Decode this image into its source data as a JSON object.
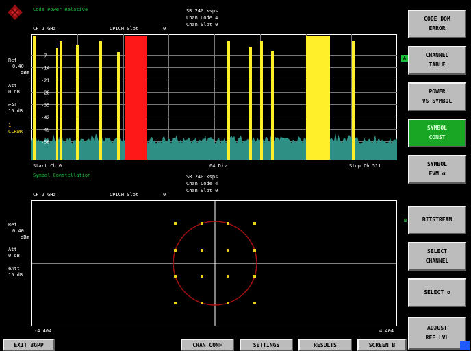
{
  "top": {
    "title": "Code Power Relative",
    "cf": "CF 2 GHz",
    "slot_label": "CPICH Slot",
    "slot_value": "0",
    "sr": "SR 240 ksps",
    "chan_code": "Chan Code 4",
    "chan_slot": "Chan Slot 0",
    "left_info": [
      "Ref",
      "0.40",
      "dBm",
      "Att",
      "0 dB",
      "eAtt",
      "15 dB",
      "1",
      "CLRWR"
    ],
    "y_ticks": [
      "-7",
      "-14",
      "-21",
      "-28",
      "-35",
      "-42",
      "-49",
      "-56"
    ],
    "start": "Start Ch 0",
    "div": "64 Div",
    "stop": "Stop Ch 511",
    "marker_a": "A"
  },
  "bottom": {
    "title": "Symbol Constellation",
    "cf": "CF 2 GHz",
    "slot_label": "CPICH Slot",
    "slot_value": "0",
    "sr": "SR 240 ksps",
    "chan_code": "Chan Code 4",
    "chan_slot": "Chan Slot 0",
    "left_info": [
      "Ref",
      "0.40",
      "dBm",
      "Att",
      "0 dB",
      "eAtt",
      "15 dB"
    ],
    "x_min": "-4.404",
    "x_max": "4.404",
    "marker_b": "B"
  },
  "softkeys": [
    {
      "line1": "CODE DOM",
      "line2": "ERROR",
      "active": false
    },
    {
      "line1": "CHANNEL",
      "line2": "TABLE",
      "active": false
    },
    {
      "line1": "POWER",
      "line2": "VS SYMBOL",
      "active": false
    },
    {
      "line1": "SYMBOL",
      "line2": "CONST",
      "active": true
    },
    {
      "line1": "SYMBOL",
      "line2": "EVM  σ",
      "active": false
    },
    {
      "line1": "BITSTREAM",
      "line2": "",
      "active": false
    },
    {
      "line1": "SELECT",
      "line2": "CHANNEL",
      "active": false
    },
    {
      "line1": "SELECT  σ",
      "line2": "",
      "active": false
    },
    {
      "line1": "ADJUST",
      "line2": "REF LVL",
      "active": false
    }
  ],
  "bottom_buttons": {
    "exit": "EXIT 3GPP",
    "chan_conf": "CHAN CONF",
    "settings": "SETTINGS",
    "results": "RESULTS",
    "screen": "SCREEN B"
  },
  "colors": {
    "bar_active": "#ff1818",
    "bar": "#ffef2a",
    "noise": "#2e8f84",
    "title": "#19c23a",
    "circle": "#a01010",
    "symbol": "#e8d31a"
  }
}
